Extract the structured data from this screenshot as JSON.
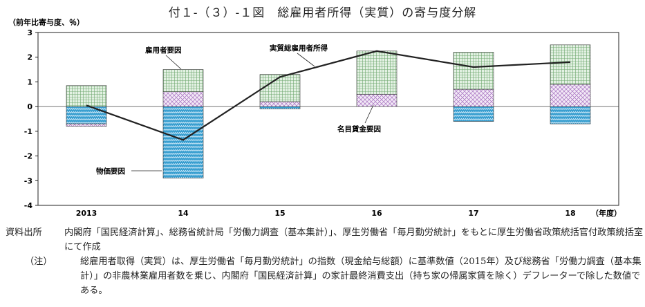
{
  "page_title": "付１-（３）-１図　総雇用者所得（実質）の寄与度分解",
  "chart_data": {
    "type": "bar",
    "ylabel": "（前年比寄与度、％）",
    "xlabel": "（年度）",
    "ylim": [
      -4,
      3
    ],
    "yticks": [
      "3",
      "2",
      "1",
      "0",
      "-1",
      "-2",
      "-3",
      "-4"
    ],
    "categories": [
      "2013",
      "14",
      "15",
      "16",
      "17",
      "18"
    ],
    "series": [
      {
        "name": "雇用者要因",
        "kind": "bar",
        "values": [
          0.85,
          0.9,
          1.1,
          1.75,
          1.5,
          1.6
        ],
        "color": "#cfe7cf"
      },
      {
        "name": "名目賃金要因",
        "kind": "bar",
        "values": [
          -0.1,
          0.6,
          0.2,
          0.5,
          0.7,
          0.9
        ],
        "color": "#ead7f0"
      },
      {
        "name": "物価要因",
        "kind": "bar",
        "values": [
          -0.7,
          -2.9,
          -0.1,
          0.0,
          -0.6,
          -0.7
        ],
        "color": "#5fb6e0"
      },
      {
        "name": "実質総雇用者所得",
        "kind": "line",
        "values": [
          0.05,
          -1.35,
          1.2,
          2.25,
          1.6,
          1.8
        ],
        "color": "#222222"
      }
    ],
    "annotations": [
      "雇用者要因",
      "実質総雇用者所得",
      "名目賃金要因",
      "物価要因"
    ]
  },
  "notes": {
    "source_label": "資料出所",
    "source_text": "内閣府「国民経済計算」、総務省統計局「労働力調査（基本集計）」、厚生労働省「毎月勤労統計」をもとに厚生労働省政策統括官付政策統括室にて作成",
    "note_label": "（注）",
    "note_text": "総雇用者取得（実質）は、厚生労働省「毎月勤労統計」の指数（現金給与総額）に基準数値（2015年）及び総務省「労働力調査（基本集計）」の非農林業雇用者数を乗じ、内閣府「国民経済計算」の家計最終消費支出（持ち家の帰属家賃を除く）デフレーターで除した数値である。"
  }
}
